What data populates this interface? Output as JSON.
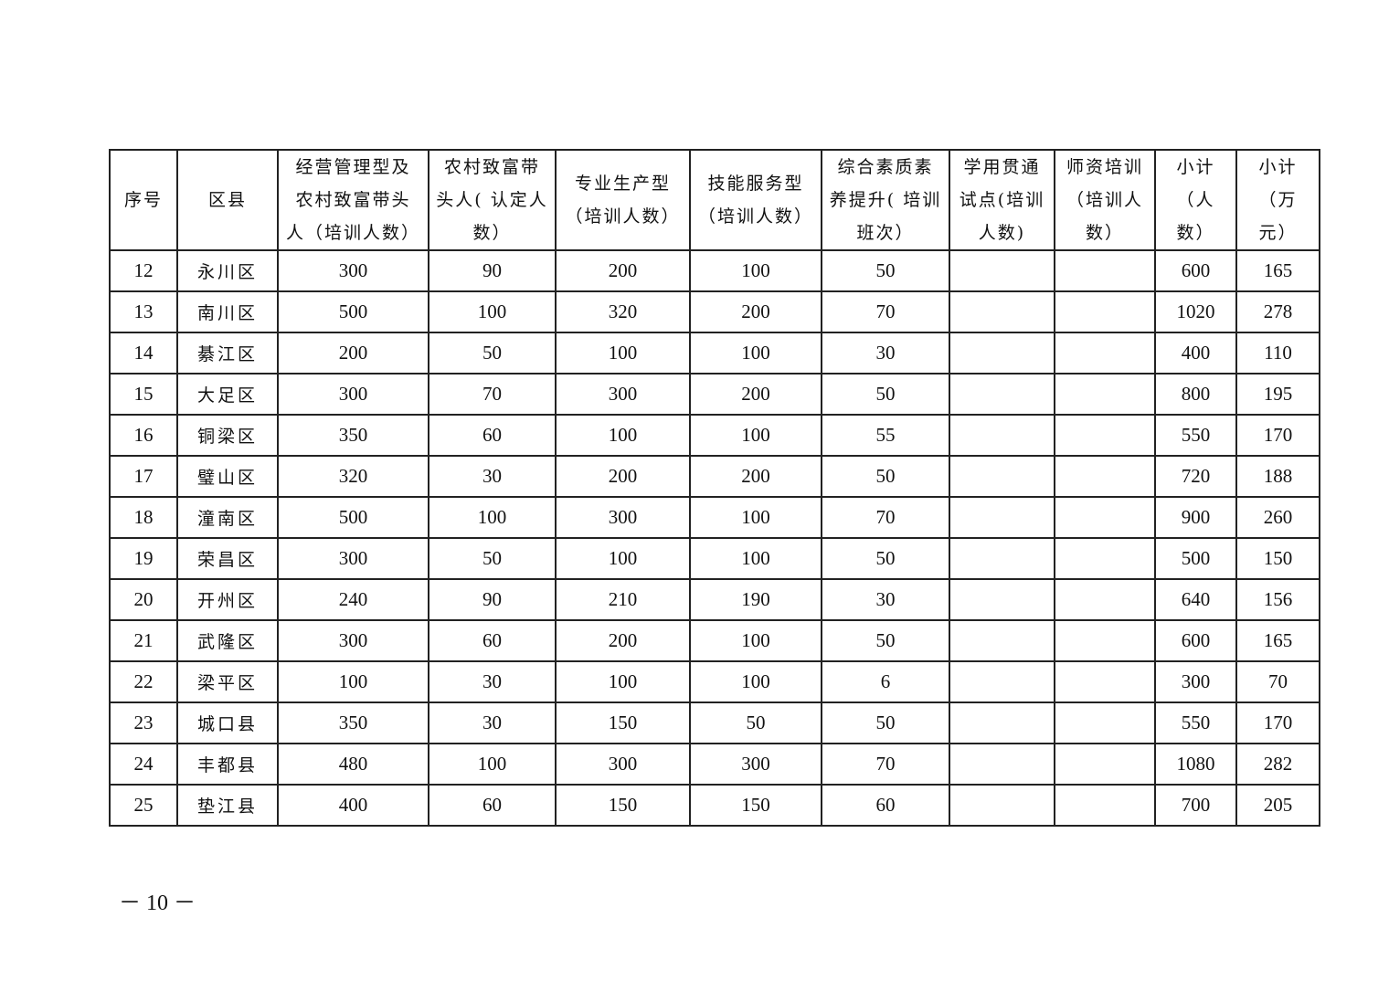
{
  "table": {
    "headers": [
      "序号",
      "区县",
      "经营管理型及\n农村致富带头\n人（培训人数）",
      "农村致富带\n头人( 认定人\n数）",
      "专业生产型\n（培训人数）",
      "技能服务型\n（培训人数）",
      "综合素质素\n养提升( 培训\n班次）",
      "学用贯通\n试点(培训\n人数)",
      "师资培训\n（培训人\n数）",
      "小计\n（人\n数）",
      "小计\n（万\n元）"
    ],
    "rows": [
      [
        "12",
        "永川区",
        "300",
        "90",
        "200",
        "100",
        "50",
        "",
        "",
        "600",
        "165"
      ],
      [
        "13",
        "南川区",
        "500",
        "100",
        "320",
        "200",
        "70",
        "",
        "",
        "1020",
        "278"
      ],
      [
        "14",
        "綦江区",
        "200",
        "50",
        "100",
        "100",
        "30",
        "",
        "",
        "400",
        "110"
      ],
      [
        "15",
        "大足区",
        "300",
        "70",
        "300",
        "200",
        "50",
        "",
        "",
        "800",
        "195"
      ],
      [
        "16",
        "铜梁区",
        "350",
        "60",
        "100",
        "100",
        "55",
        "",
        "",
        "550",
        "170"
      ],
      [
        "17",
        "璧山区",
        "320",
        "30",
        "200",
        "200",
        "50",
        "",
        "",
        "720",
        "188"
      ],
      [
        "18",
        "潼南区",
        "500",
        "100",
        "300",
        "100",
        "70",
        "",
        "",
        "900",
        "260"
      ],
      [
        "19",
        "荣昌区",
        "300",
        "50",
        "100",
        "100",
        "50",
        "",
        "",
        "500",
        "150"
      ],
      [
        "20",
        "开州区",
        "240",
        "90",
        "210",
        "190",
        "30",
        "",
        "",
        "640",
        "156"
      ],
      [
        "21",
        "武隆区",
        "300",
        "60",
        "200",
        "100",
        "50",
        "",
        "",
        "600",
        "165"
      ],
      [
        "22",
        "梁平区",
        "100",
        "30",
        "100",
        "100",
        "6",
        "",
        "",
        "300",
        "70"
      ],
      [
        "23",
        "城口县",
        "350",
        "30",
        "150",
        "50",
        "50",
        "",
        "",
        "550",
        "170"
      ],
      [
        "24",
        "丰都县",
        "480",
        "100",
        "300",
        "300",
        "70",
        "",
        "",
        "1080",
        "282"
      ],
      [
        "25",
        "垫江县",
        "400",
        "60",
        "150",
        "150",
        "60",
        "",
        "",
        "700",
        "205"
      ]
    ]
  },
  "page_number": "－ 10 －"
}
